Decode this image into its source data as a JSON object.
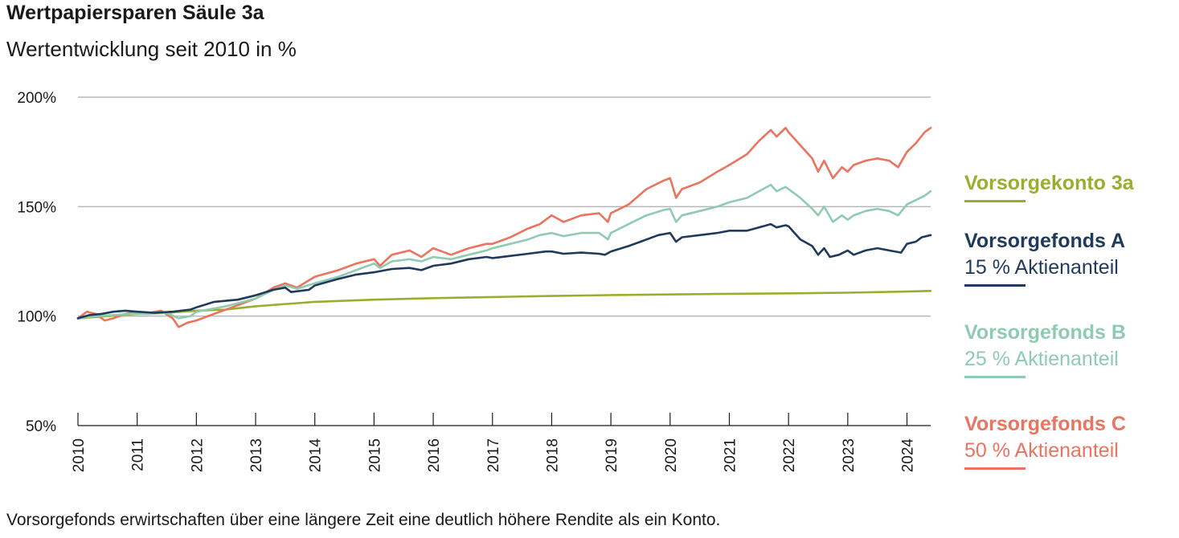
{
  "title": "Wertpapiersparen Säule 3a",
  "subtitle": "Wertentwicklung seit 2010 in %",
  "footnote": "Vorsorgefonds erwirtschaften über eine längere Zeit eine deutlich höhere Rendite als ein Konto.",
  "colors": {
    "konto": "#9aae2d",
    "fondsA": "#1f3a5a",
    "fondsB": "#8fcbb0",
    "fondsC": "#ea7460",
    "grid": "#b7b7b7",
    "axis": "#1a1a1a"
  },
  "legend": [
    {
      "name": "Vorsorgekonto 3a",
      "sub": "",
      "color": "#9aae2d"
    },
    {
      "name": "Vorsorgefonds A",
      "sub": "15 % Aktienanteil",
      "color": "#1f3a5a"
    },
    {
      "name": "Vorsorgefonds B",
      "sub": "25 % Aktienanteil",
      "color": "#8fcbb0"
    },
    {
      "name": "Vorsorgefonds C",
      "sub": "50 % Aktienanteil",
      "color": "#ea7460"
    }
  ],
  "chart_data": {
    "type": "line",
    "title": "Wertpapiersparen Säule 3a",
    "subtitle": "Wertentwicklung seit 2010 in %",
    "xlabel": "",
    "ylabel": "",
    "xlim": [
      2010,
      2024.4
    ],
    "ylim": [
      50,
      200
    ],
    "y_ticks": [
      50,
      100,
      150,
      200
    ],
    "y_tick_labels": [
      "50%",
      "100%",
      "150%",
      "200%"
    ],
    "x_ticks": [
      2010,
      2011,
      2012,
      2013,
      2014,
      2015,
      2016,
      2017,
      2018,
      2019,
      2020,
      2021,
      2022,
      2023,
      2024
    ],
    "grid": true,
    "legend_position": "right",
    "series": [
      {
        "name": "Vorsorgekonto 3a",
        "color": "#9aae2d",
        "points": [
          [
            2010,
            99
          ],
          [
            2010.5,
            100
          ],
          [
            2011,
            101
          ],
          [
            2011.5,
            101.5
          ],
          [
            2012,
            102.5
          ],
          [
            2012.5,
            103
          ],
          [
            2013,
            104.5
          ],
          [
            2014,
            106.5
          ],
          [
            2015,
            107.5
          ],
          [
            2016,
            108.2
          ],
          [
            2017,
            108.7
          ],
          [
            2018,
            109.2
          ],
          [
            2019,
            109.6
          ],
          [
            2020,
            109.9
          ],
          [
            2021,
            110.2
          ],
          [
            2022,
            110.4
          ],
          [
            2023,
            110.7
          ],
          [
            2024,
            111.2
          ],
          [
            2024.4,
            111.5
          ]
        ]
      },
      {
        "name": "Vorsorgefonds A",
        "color": "#1f3a5a",
        "points": [
          [
            2010,
            99
          ],
          [
            2010.2,
            100.5
          ],
          [
            2010.4,
            101
          ],
          [
            2010.6,
            102
          ],
          [
            2010.8,
            102.5
          ],
          [
            2011,
            102
          ],
          [
            2011.3,
            101.5
          ],
          [
            2011.6,
            102
          ],
          [
            2011.9,
            103
          ],
          [
            2012,
            104
          ],
          [
            2012.3,
            106.5
          ],
          [
            2012.7,
            107.5
          ],
          [
            2013,
            109.5
          ],
          [
            2013.3,
            112
          ],
          [
            2013.5,
            113
          ],
          [
            2013.6,
            111
          ],
          [
            2013.9,
            112
          ],
          [
            2014,
            114
          ],
          [
            2014.4,
            117
          ],
          [
            2014.7,
            119
          ],
          [
            2015,
            120
          ],
          [
            2015.3,
            121.5
          ],
          [
            2015.6,
            122
          ],
          [
            2015.8,
            121
          ],
          [
            2016,
            123
          ],
          [
            2016.3,
            124
          ],
          [
            2016.6,
            126
          ],
          [
            2016.9,
            127
          ],
          [
            2017,
            126.5
          ],
          [
            2017.3,
            127.5
          ],
          [
            2017.6,
            128.5
          ],
          [
            2017.9,
            129.5
          ],
          [
            2018,
            129.5
          ],
          [
            2018.2,
            128.5
          ],
          [
            2018.5,
            129
          ],
          [
            2018.8,
            128.5
          ],
          [
            2018.9,
            128
          ],
          [
            2019,
            129.5
          ],
          [
            2019.3,
            132
          ],
          [
            2019.5,
            134
          ],
          [
            2019.8,
            137
          ],
          [
            2020,
            138
          ],
          [
            2020.1,
            134
          ],
          [
            2020.2,
            136
          ],
          [
            2020.5,
            137
          ],
          [
            2020.8,
            138
          ],
          [
            2021,
            139
          ],
          [
            2021.3,
            139
          ],
          [
            2021.5,
            140.5
          ],
          [
            2021.7,
            142
          ],
          [
            2021.8,
            140.5
          ],
          [
            2021.95,
            141.5
          ],
          [
            2022,
            141
          ],
          [
            2022.2,
            135
          ],
          [
            2022.4,
            132
          ],
          [
            2022.5,
            128
          ],
          [
            2022.6,
            131
          ],
          [
            2022.7,
            127
          ],
          [
            2022.85,
            128
          ],
          [
            2023,
            130
          ],
          [
            2023.1,
            128
          ],
          [
            2023.3,
            130
          ],
          [
            2023.5,
            131
          ],
          [
            2023.7,
            130
          ],
          [
            2023.9,
            129
          ],
          [
            2024,
            133
          ],
          [
            2024.15,
            134
          ],
          [
            2024.25,
            136
          ],
          [
            2024.4,
            137
          ]
        ]
      },
      {
        "name": "Vorsorgefonds B",
        "color": "#8fcbb0",
        "points": [
          [
            2010,
            99
          ],
          [
            2010.3,
            100
          ],
          [
            2010.6,
            100.5
          ],
          [
            2010.9,
            101
          ],
          [
            2011.2,
            101
          ],
          [
            2011.5,
            101.5
          ],
          [
            2011.7,
            99
          ],
          [
            2011.9,
            100
          ],
          [
            2012,
            102
          ],
          [
            2012.5,
            104.5
          ],
          [
            2013,
            108
          ],
          [
            2013.3,
            112
          ],
          [
            2013.5,
            114
          ],
          [
            2013.7,
            112.5
          ],
          [
            2014,
            115
          ],
          [
            2014.4,
            118
          ],
          [
            2014.7,
            121
          ],
          [
            2015,
            124
          ],
          [
            2015.1,
            122
          ],
          [
            2015.3,
            125
          ],
          [
            2015.6,
            126
          ],
          [
            2015.8,
            125
          ],
          [
            2016,
            127
          ],
          [
            2016.3,
            126
          ],
          [
            2016.6,
            128
          ],
          [
            2016.9,
            130
          ],
          [
            2017,
            131
          ],
          [
            2017.3,
            133
          ],
          [
            2017.6,
            135
          ],
          [
            2017.8,
            137
          ],
          [
            2018,
            138
          ],
          [
            2018.2,
            136.5
          ],
          [
            2018.5,
            138
          ],
          [
            2018.8,
            138
          ],
          [
            2018.95,
            135
          ],
          [
            2019,
            138
          ],
          [
            2019.3,
            142
          ],
          [
            2019.6,
            146
          ],
          [
            2019.9,
            148.5
          ],
          [
            2020,
            149
          ],
          [
            2020.1,
            143
          ],
          [
            2020.2,
            146
          ],
          [
            2020.5,
            148
          ],
          [
            2020.8,
            150
          ],
          [
            2021,
            152
          ],
          [
            2021.3,
            154
          ],
          [
            2021.5,
            157
          ],
          [
            2021.7,
            160
          ],
          [
            2021.8,
            157
          ],
          [
            2021.95,
            159
          ],
          [
            2022,
            158
          ],
          [
            2022.2,
            154
          ],
          [
            2022.4,
            149
          ],
          [
            2022.5,
            146
          ],
          [
            2022.6,
            150
          ],
          [
            2022.75,
            143
          ],
          [
            2022.9,
            146
          ],
          [
            2023,
            144
          ],
          [
            2023.1,
            146
          ],
          [
            2023.3,
            148
          ],
          [
            2023.5,
            149
          ],
          [
            2023.7,
            148
          ],
          [
            2023.85,
            146
          ],
          [
            2024,
            151
          ],
          [
            2024.15,
            153
          ],
          [
            2024.3,
            155
          ],
          [
            2024.4,
            157
          ]
        ]
      },
      {
        "name": "Vorsorgefonds C",
        "color": "#ea7460",
        "points": [
          [
            2010,
            99
          ],
          [
            2010.15,
            102
          ],
          [
            2010.3,
            101
          ],
          [
            2010.45,
            98
          ],
          [
            2010.6,
            99
          ],
          [
            2010.8,
            101
          ],
          [
            2011,
            102
          ],
          [
            2011.2,
            101.5
          ],
          [
            2011.4,
            102.5
          ],
          [
            2011.6,
            99
          ],
          [
            2011.7,
            95
          ],
          [
            2011.85,
            97
          ],
          [
            2012,
            98
          ],
          [
            2012.3,
            101
          ],
          [
            2012.6,
            104
          ],
          [
            2013,
            108
          ],
          [
            2013.3,
            113
          ],
          [
            2013.5,
            115
          ],
          [
            2013.7,
            113
          ],
          [
            2014,
            118
          ],
          [
            2014.4,
            121
          ],
          [
            2014.7,
            124
          ],
          [
            2015,
            126
          ],
          [
            2015.1,
            123
          ],
          [
            2015.3,
            128
          ],
          [
            2015.6,
            130
          ],
          [
            2015.8,
            127
          ],
          [
            2016,
            131
          ],
          [
            2016.3,
            128
          ],
          [
            2016.6,
            131
          ],
          [
            2016.9,
            133
          ],
          [
            2017,
            133
          ],
          [
            2017.3,
            136
          ],
          [
            2017.6,
            140
          ],
          [
            2017.8,
            142
          ],
          [
            2018,
            146
          ],
          [
            2018.2,
            143
          ],
          [
            2018.5,
            146
          ],
          [
            2018.8,
            147
          ],
          [
            2018.95,
            143
          ],
          [
            2019,
            147
          ],
          [
            2019.3,
            151
          ],
          [
            2019.6,
            158
          ],
          [
            2019.9,
            162
          ],
          [
            2020,
            163
          ],
          [
            2020.1,
            154
          ],
          [
            2020.2,
            158
          ],
          [
            2020.5,
            161
          ],
          [
            2020.8,
            166
          ],
          [
            2021,
            169
          ],
          [
            2021.3,
            174
          ],
          [
            2021.5,
            180
          ],
          [
            2021.7,
            185
          ],
          [
            2021.8,
            182
          ],
          [
            2021.95,
            186
          ],
          [
            2022,
            184
          ],
          [
            2022.2,
            178
          ],
          [
            2022.4,
            172
          ],
          [
            2022.5,
            166
          ],
          [
            2022.6,
            171
          ],
          [
            2022.75,
            163
          ],
          [
            2022.9,
            168
          ],
          [
            2023,
            166
          ],
          [
            2023.1,
            169
          ],
          [
            2023.3,
            171
          ],
          [
            2023.5,
            172
          ],
          [
            2023.7,
            171
          ],
          [
            2023.85,
            168
          ],
          [
            2024,
            175
          ],
          [
            2024.15,
            179
          ],
          [
            2024.3,
            184
          ],
          [
            2024.4,
            186
          ]
        ]
      }
    ]
  }
}
